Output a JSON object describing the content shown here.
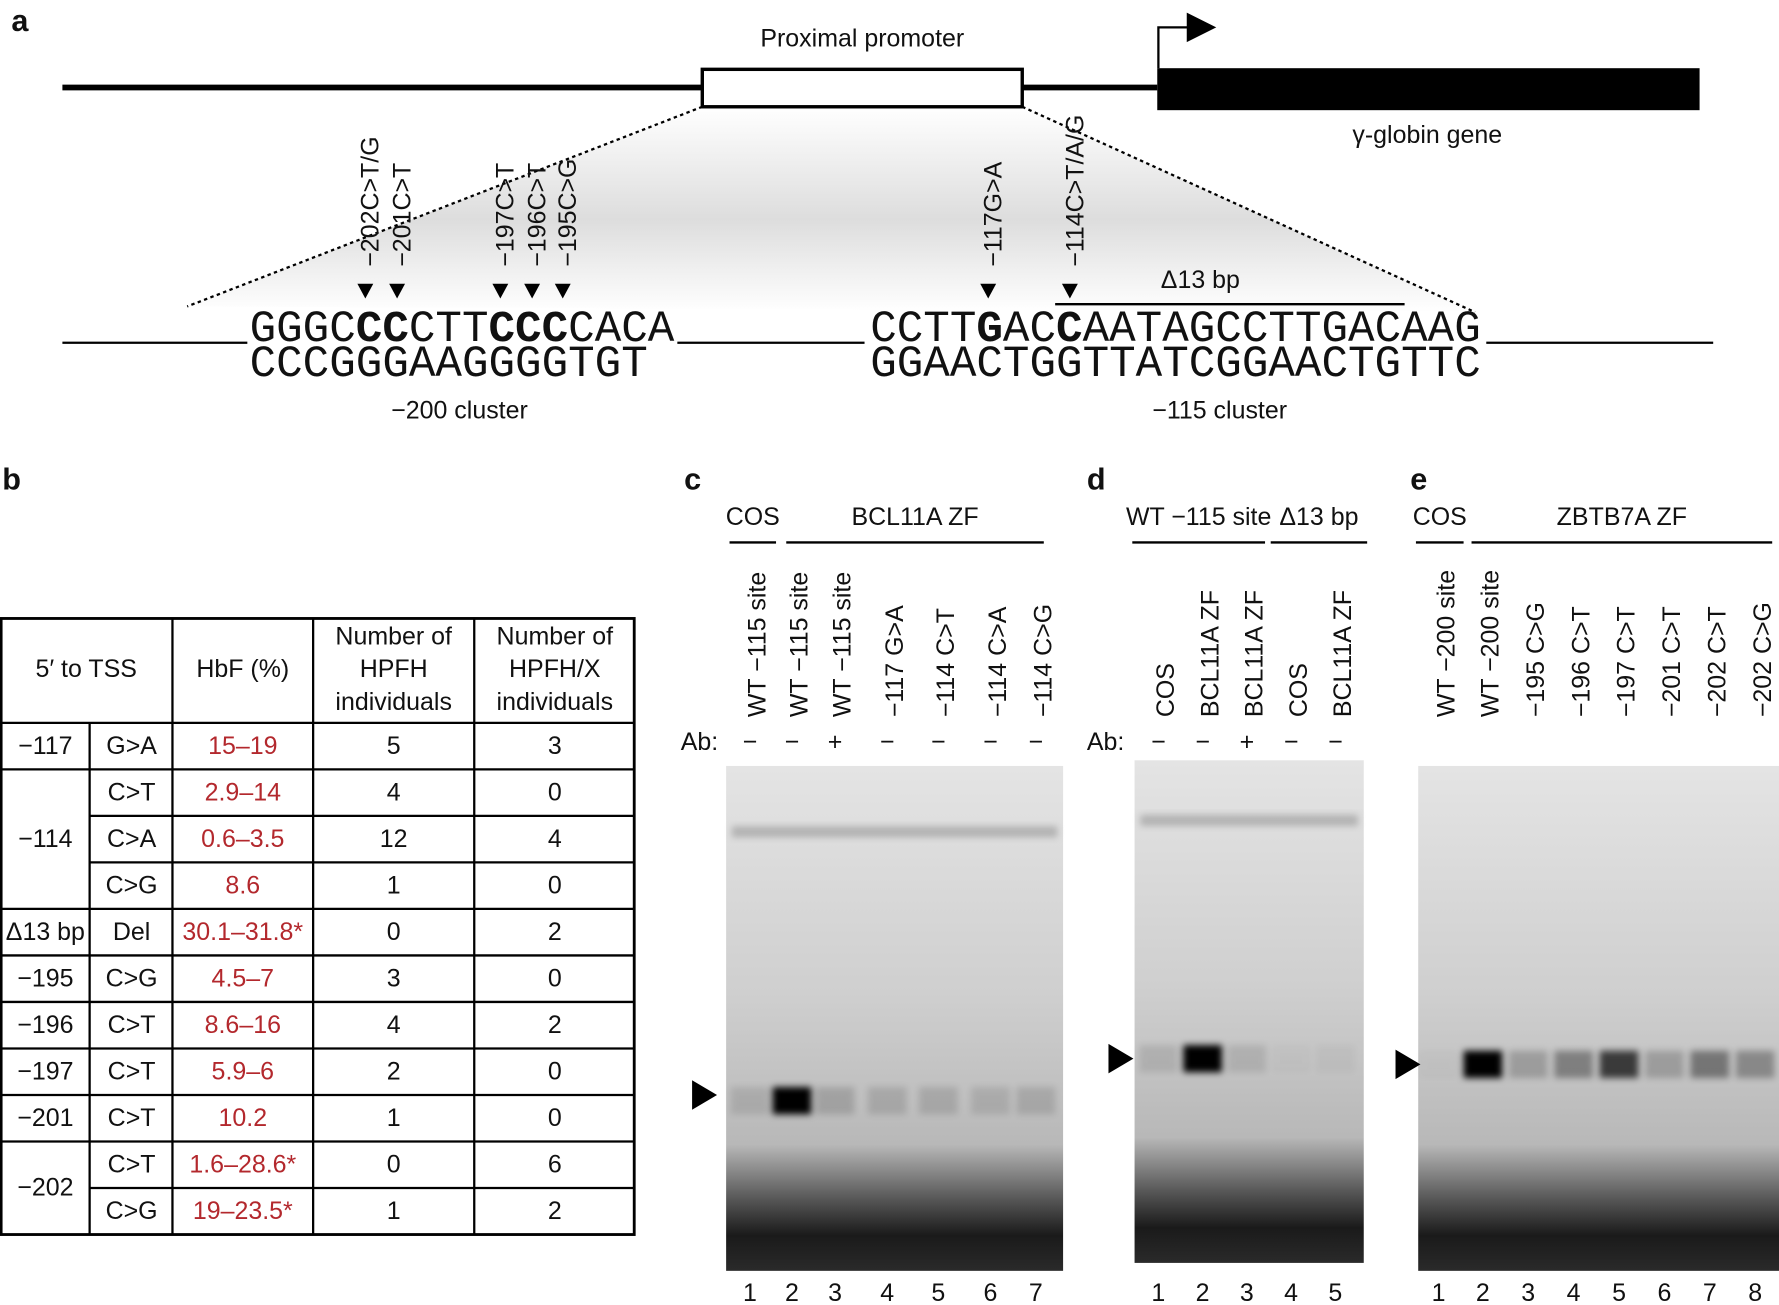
{
  "panel_labels": [
    "a",
    "b",
    "c",
    "d",
    "e"
  ],
  "diagram": {
    "promoter": "Proximal promoter",
    "gene": "γ-globin gene",
    "mutations": [
      "−202C>T/G",
      "−201C>T",
      "−197C>T",
      "−196C>T",
      "−195C>G",
      "−117G>A",
      "−114C>T/A/G"
    ],
    "deletion": "Δ13 bp",
    "clusters": [
      {
        "top": [
          {
            "text": "GGGC",
            "bold": false
          },
          {
            "text": "CC",
            "bold": true
          },
          {
            "text": "CTT",
            "bold": false
          },
          {
            "text": "CCC",
            "bold": true
          },
          {
            "text": "CACA",
            "bold": false
          }
        ],
        "bottom": "CCCGGGAAGGGGTGT",
        "label": "−200 cluster"
      },
      {
        "top": [
          {
            "text": "CCTT",
            "bold": false
          },
          {
            "text": "G",
            "bold": true
          },
          {
            "text": "AC",
            "bold": false
          },
          {
            "text": "C",
            "bold": true
          },
          {
            "text": "AATAGCCTTGACAAG",
            "bold": false
          }
        ],
        "bottom": "GGAACTGGTTATCGGAACTGTTC",
        "label": "−115 cluster"
      }
    ]
  },
  "table": {
    "header": [
      [
        "5′ to TSS"
      ],
      [
        "HbF (%)"
      ],
      [
        "Number of",
        "HPFH",
        "individuals"
      ],
      [
        "Number of",
        "HPFH/X",
        "individuals"
      ]
    ],
    "groups": [
      {
        "position": "−117",
        "rows": [
          {
            "change": "G>A",
            "hbf": "15–19",
            "hpfh": 5,
            "hpfhx": 3
          }
        ]
      },
      {
        "position": "−114",
        "rows": [
          {
            "change": "C>T",
            "hbf": "2.9–14",
            "hpfh": 4,
            "hpfhx": 0
          },
          {
            "change": "C>A",
            "hbf": "0.6–3.5",
            "hpfh": 12,
            "hpfhx": 4
          },
          {
            "change": "C>G",
            "hbf": "8.6",
            "hpfh": 1,
            "hpfhx": 0
          }
        ]
      },
      {
        "position": "Δ13 bp",
        "rows": [
          {
            "change": "Del",
            "hbf": "30.1–31.8*",
            "hpfh": 0,
            "hpfhx": 2
          }
        ]
      },
      {
        "position": "−195",
        "rows": [
          {
            "change": "C>G",
            "hbf": "4.5–7",
            "hpfh": 3,
            "hpfhx": 0
          }
        ]
      },
      {
        "position": "−196",
        "rows": [
          {
            "change": "C>T",
            "hbf": "8.6–16",
            "hpfh": 4,
            "hpfhx": 2
          }
        ]
      },
      {
        "position": "−197",
        "rows": [
          {
            "change": "C>T",
            "hbf": "5.9–6",
            "hpfh": 2,
            "hpfhx": 0
          }
        ]
      },
      {
        "position": "−201",
        "rows": [
          {
            "change": "C>T",
            "hbf": "10.2",
            "hpfh": 1,
            "hpfhx": 0
          }
        ]
      },
      {
        "position": "−202",
        "rows": [
          {
            "change": "C>T",
            "hbf": "1.6–28.6*",
            "hpfh": 0,
            "hpfhx": 6
          },
          {
            "change": "C>G",
            "hbf": "19–23.5*",
            "hpfh": 1,
            "hpfhx": 2
          }
        ]
      }
    ]
  },
  "gels": [
    {
      "headers": [
        "COS",
        "BCL11A ZF"
      ],
      "lanes": [
        "WT −115 site",
        "WT −115 site",
        "WT −115 site",
        "−117 G>A",
        "−114 C>T",
        "−114 C>A",
        "−114 C>G"
      ],
      "ab_label": "Ab:",
      "ab": [
        "−",
        "−",
        "+",
        "−",
        "−",
        "−",
        "−"
      ],
      "lane_numbers": [
        1,
        2,
        3,
        4,
        5,
        6,
        7
      ]
    },
    {
      "headers": [
        "WT −115 site",
        "Δ13 bp"
      ],
      "lanes": [
        "COS",
        "BCL11A ZF",
        "BCL11A ZF",
        "COS",
        "BCL11A ZF"
      ],
      "ab_label": "Ab:",
      "ab": [
        "−",
        "−",
        "+",
        "−",
        "−"
      ],
      "lane_numbers": [
        1,
        2,
        3,
        4,
        5
      ]
    },
    {
      "headers": [
        "COS",
        "ZBTB7A ZF"
      ],
      "lanes": [
        "WT −200 site",
        "WT −200 site",
        "−195 C>G",
        "−196 C>T",
        "−197 C>T",
        "−201 C>T",
        "−202 C>T",
        "−202 C>G"
      ],
      "lane_numbers": [
        1,
        2,
        3,
        4,
        5,
        6,
        7,
        8
      ]
    }
  ]
}
